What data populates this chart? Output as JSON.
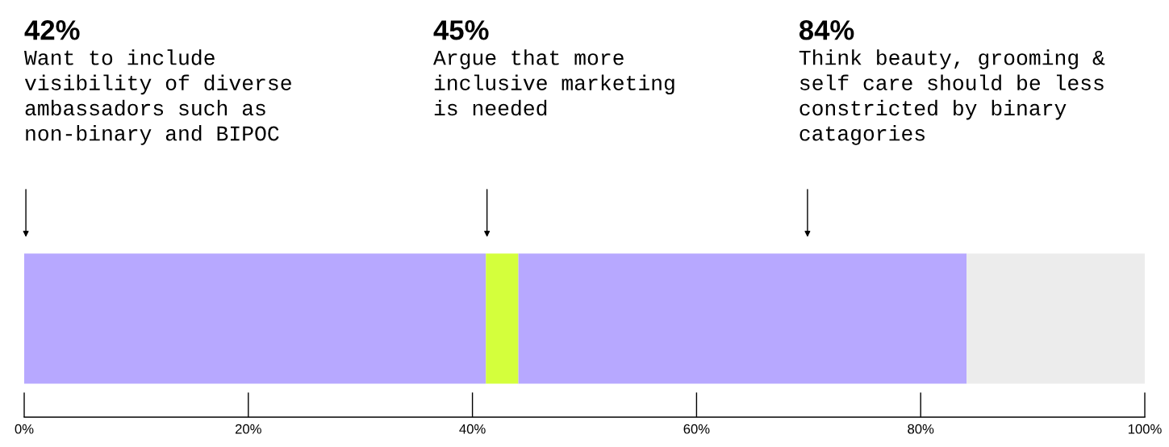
{
  "chart_data": {
    "type": "bar",
    "orientation": "horizontal",
    "stacked": true,
    "categories": [
      null
    ],
    "series": [
      {
        "color": "#b7a8ff",
        "values": [
          41.2
        ]
      },
      {
        "color": "#d4ff3c",
        "values": [
          2.9
        ]
      },
      {
        "color": "#b7a8ff",
        "values": [
          40.0
        ]
      },
      {
        "color": "#ececec",
        "values": [
          15.9
        ]
      }
    ],
    "xlim": [
      0,
      100
    ],
    "xticks": [
      {
        "value": 0,
        "label": "0%"
      },
      {
        "value": 20,
        "label": "20%"
      },
      {
        "value": 40,
        "label": "40%"
      },
      {
        "value": 60,
        "label": "60%"
      },
      {
        "value": 80,
        "label": "80%"
      },
      {
        "value": 100,
        "label": "100%"
      }
    ],
    "tick_labels": "x",
    "grid": false,
    "legend": false,
    "annotations": [
      "42%",
      "Want to include\nvisibility of diverse\nambassadors such as\nnon-binary and BIPOC",
      "45%",
      "Argue that more\ninclusive marketing\nis needed",
      "84%",
      "Think beauty, grooming &\nself care should be less\nconstricted by binary\ncatagories"
    ]
  }
}
